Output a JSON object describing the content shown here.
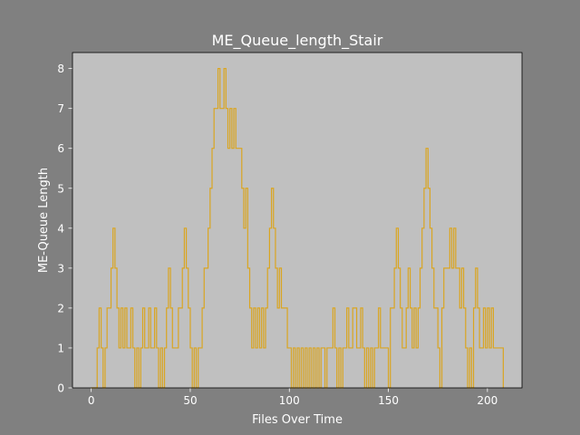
{
  "chart_data": {
    "type": "line",
    "drawstyle": "steps-post",
    "title": "ME_Queue_length_Stair",
    "xlabel": "Files Over Time",
    "ylabel": "ME-Queue Length",
    "xlim": [
      -9.45,
      217.45
    ],
    "ylim": [
      0,
      8.4
    ],
    "xticks": [
      "0",
      "50",
      "100",
      "150",
      "200"
    ],
    "xtick_values": [
      0,
      50,
      100,
      150,
      200
    ],
    "yticks": [
      "0",
      "1",
      "2",
      "3",
      "4",
      "5",
      "6",
      "7",
      "8"
    ],
    "ytick_values": [
      0,
      1,
      2,
      3,
      4,
      5,
      6,
      7,
      8
    ],
    "grid": false,
    "colors": {
      "figure_bg": "#808080",
      "axes_bg": "#c0c0c0",
      "line": "#daa520",
      "text": "#ffffff"
    },
    "series": [
      {
        "x": [
          0,
          1,
          2,
          3,
          4,
          5,
          6,
          7,
          8,
          9,
          10,
          11,
          12,
          13,
          14,
          15,
          16,
          17,
          18,
          19,
          20,
          21,
          22,
          23,
          24,
          25,
          26,
          27,
          28,
          29,
          30,
          31,
          32,
          33,
          34,
          35,
          36,
          37,
          38,
          39,
          40,
          41,
          42,
          43,
          44,
          45,
          46,
          47,
          48,
          49,
          50,
          51,
          52,
          53,
          54,
          55,
          56,
          57,
          58,
          59,
          60,
          61,
          62,
          63,
          64,
          65,
          66,
          67,
          68,
          69,
          70,
          71,
          72,
          73,
          74,
          75,
          76,
          77,
          78,
          79,
          80,
          81,
          82,
          83,
          84,
          85,
          86,
          87,
          88,
          89,
          90,
          91,
          92,
          93,
          94,
          95,
          96,
          97,
          98,
          99,
          100,
          101,
          102,
          103,
          104,
          105,
          106,
          107,
          108,
          109,
          110,
          111,
          112,
          113,
          114,
          115,
          116,
          117,
          118,
          119,
          120,
          121,
          122,
          123,
          124,
          125,
          126,
          127,
          128,
          129,
          130,
          131,
          132,
          133,
          134,
          135,
          136,
          137,
          138,
          139,
          140,
          141,
          142,
          143,
          144,
          145,
          146,
          147,
          148,
          149,
          150,
          151,
          152,
          153,
          154,
          155,
          156,
          157,
          158,
          159,
          160,
          161,
          162,
          163,
          164,
          165,
          166,
          167,
          168,
          169,
          170,
          171,
          172,
          173,
          174,
          175,
          176,
          177,
          178,
          179,
          180,
          181,
          182,
          183,
          184,
          185,
          186,
          187,
          188,
          189,
          190,
          191,
          192,
          193,
          194,
          195,
          196,
          197,
          198,
          199,
          200,
          201,
          202,
          203,
          204,
          205,
          206,
          207,
          208
        ],
        "values": [
          0,
          0,
          0,
          1,
          2,
          1,
          0,
          1,
          2,
          2,
          3,
          4,
          3,
          2,
          1,
          2,
          1,
          2,
          1,
          1,
          2,
          1,
          0,
          1,
          0,
          1,
          2,
          1,
          1,
          2,
          1,
          1,
          2,
          1,
          0,
          1,
          0,
          1,
          2,
          3,
          2,
          1,
          1,
          1,
          2,
          2,
          3,
          4,
          3,
          2,
          1,
          0,
          1,
          0,
          1,
          1,
          2,
          3,
          3,
          4,
          5,
          6,
          7,
          7,
          8,
          7,
          7,
          8,
          7,
          6,
          7,
          6,
          7,
          6,
          6,
          6,
          5,
          4,
          5,
          3,
          2,
          1,
          2,
          1,
          2,
          1,
          2,
          1,
          2,
          3,
          4,
          5,
          4,
          3,
          2,
          3,
          2,
          2,
          2,
          1,
          1,
          0,
          1,
          0,
          1,
          0,
          1,
          0,
          1,
          0,
          1,
          0,
          1,
          0,
          1,
          0,
          1,
          1,
          0,
          1,
          1,
          1,
          2,
          1,
          0,
          1,
          0,
          1,
          1,
          2,
          1,
          1,
          2,
          2,
          1,
          1,
          2,
          1,
          0,
          1,
          0,
          1,
          0,
          1,
          1,
          2,
          1,
          1,
          1,
          1,
          0,
          2,
          2,
          3,
          4,
          3,
          2,
          1,
          1,
          2,
          3,
          2,
          1,
          2,
          1,
          2,
          3,
          4,
          5,
          6,
          5,
          4,
          3,
          2,
          2,
          1,
          0,
          2,
          3,
          3,
          3,
          4,
          3,
          4,
          3,
          3,
          2,
          3,
          2,
          1,
          0,
          1,
          0,
          2,
          3,
          2,
          1,
          1,
          2,
          1,
          2,
          1,
          2,
          1,
          1,
          1,
          1,
          1,
          0
        ]
      }
    ]
  }
}
